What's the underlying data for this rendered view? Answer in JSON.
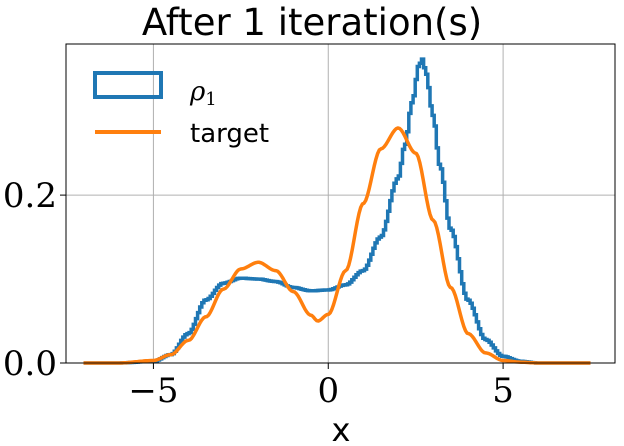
{
  "chart_data": {
    "type": "line",
    "title": "After 1 iteration(s)",
    "xlabel": "x",
    "ylabel": "",
    "xlim": [
      -7.5,
      8.2
    ],
    "ylim": [
      0,
      0.38
    ],
    "x_ticks": [
      -5,
      0,
      5
    ],
    "x_tick_labels": [
      "−5",
      "0",
      "5"
    ],
    "y_ticks": [
      0.0,
      0.2
    ],
    "y_tick_labels": [
      "0.0",
      "0.2"
    ],
    "grid": true,
    "legend_position": "top-left",
    "series": [
      {
        "name": "ρ",
        "name_subscript": "1",
        "style": "step-histogram",
        "color": "#1f77b4",
        "x": [
          -7.0,
          -6.0,
          -5.0,
          -4.5,
          -4.0,
          -3.5,
          -3.0,
          -2.5,
          -2.0,
          -1.5,
          -1.0,
          -0.5,
          0.0,
          0.5,
          1.0,
          1.5,
          2.0,
          2.2,
          2.4,
          2.6,
          2.7,
          2.8,
          3.0,
          3.2,
          3.5,
          4.0,
          4.5,
          5.0,
          5.5,
          6.0,
          7.5
        ],
        "y": [
          0.0,
          0.0,
          0.002,
          0.01,
          0.035,
          0.075,
          0.095,
          0.101,
          0.1,
          0.097,
          0.09,
          0.086,
          0.087,
          0.093,
          0.11,
          0.15,
          0.22,
          0.26,
          0.31,
          0.355,
          0.362,
          0.345,
          0.295,
          0.235,
          0.16,
          0.075,
          0.028,
          0.008,
          0.002,
          0.0,
          0.0
        ]
      },
      {
        "name": "target",
        "style": "line",
        "color": "#ff7f0e",
        "x": [
          -7.0,
          -6.0,
          -5.0,
          -4.5,
          -4.0,
          -3.5,
          -3.0,
          -2.5,
          -2.0,
          -1.5,
          -1.0,
          -0.5,
          -0.3,
          0.0,
          0.5,
          1.0,
          1.5,
          2.0,
          2.5,
          3.0,
          3.5,
          4.0,
          4.5,
          5.0,
          5.5,
          6.0,
          7.5
        ],
        "y": [
          0.0,
          0.0,
          0.003,
          0.01,
          0.027,
          0.055,
          0.088,
          0.112,
          0.12,
          0.11,
          0.085,
          0.057,
          0.05,
          0.058,
          0.11,
          0.19,
          0.255,
          0.28,
          0.25,
          0.17,
          0.09,
          0.035,
          0.012,
          0.003,
          0.001,
          0.0,
          0.0
        ]
      }
    ]
  }
}
